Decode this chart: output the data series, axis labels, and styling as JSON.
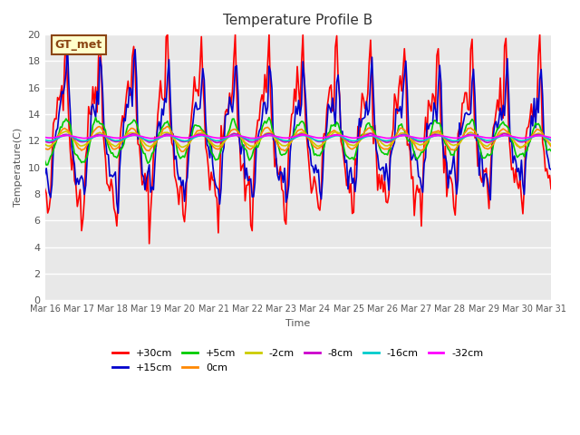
{
  "title": "Temperature Profile B",
  "xlabel": "Time",
  "ylabel": "Temperature(C)",
  "ylim": [
    0,
    20
  ],
  "background_color": "#e8e8e8",
  "annotation_text": "GT_met",
  "annotation_bg": "#ffffcc",
  "annotation_border": "#8b4513",
  "series": {
    "+30cm": {
      "color": "#ff0000",
      "lw": 1.2
    },
    "+15cm": {
      "color": "#0000cc",
      "lw": 1.2
    },
    "+5cm": {
      "color": "#00cc00",
      "lw": 1.2
    },
    "0cm": {
      "color": "#ff8800",
      "lw": 1.2
    },
    "-2cm": {
      "color": "#cccc00",
      "lw": 1.2
    },
    "-8cm": {
      "color": "#cc00cc",
      "lw": 1.2
    },
    "-16cm": {
      "color": "#00cccc",
      "lw": 1.2
    },
    "-32cm": {
      "color": "#ff00ff",
      "lw": 1.2
    }
  },
  "xtick_labels": [
    "Mar 16",
    "Mar 17",
    "Mar 18",
    "Mar 19",
    "Mar 20",
    "Mar 21",
    "Mar 22",
    "Mar 23",
    "Mar 24",
    "Mar 25",
    "Mar 26",
    "Mar 27",
    "Mar 28",
    "Mar 29",
    "Mar 30",
    "Mar 31"
  ],
  "ytick_labels": [
    "0",
    "2",
    "4",
    "6",
    "8",
    "10",
    "12",
    "14",
    "16",
    "18",
    "20"
  ],
  "num_days": 15,
  "pts_per_day": 24
}
